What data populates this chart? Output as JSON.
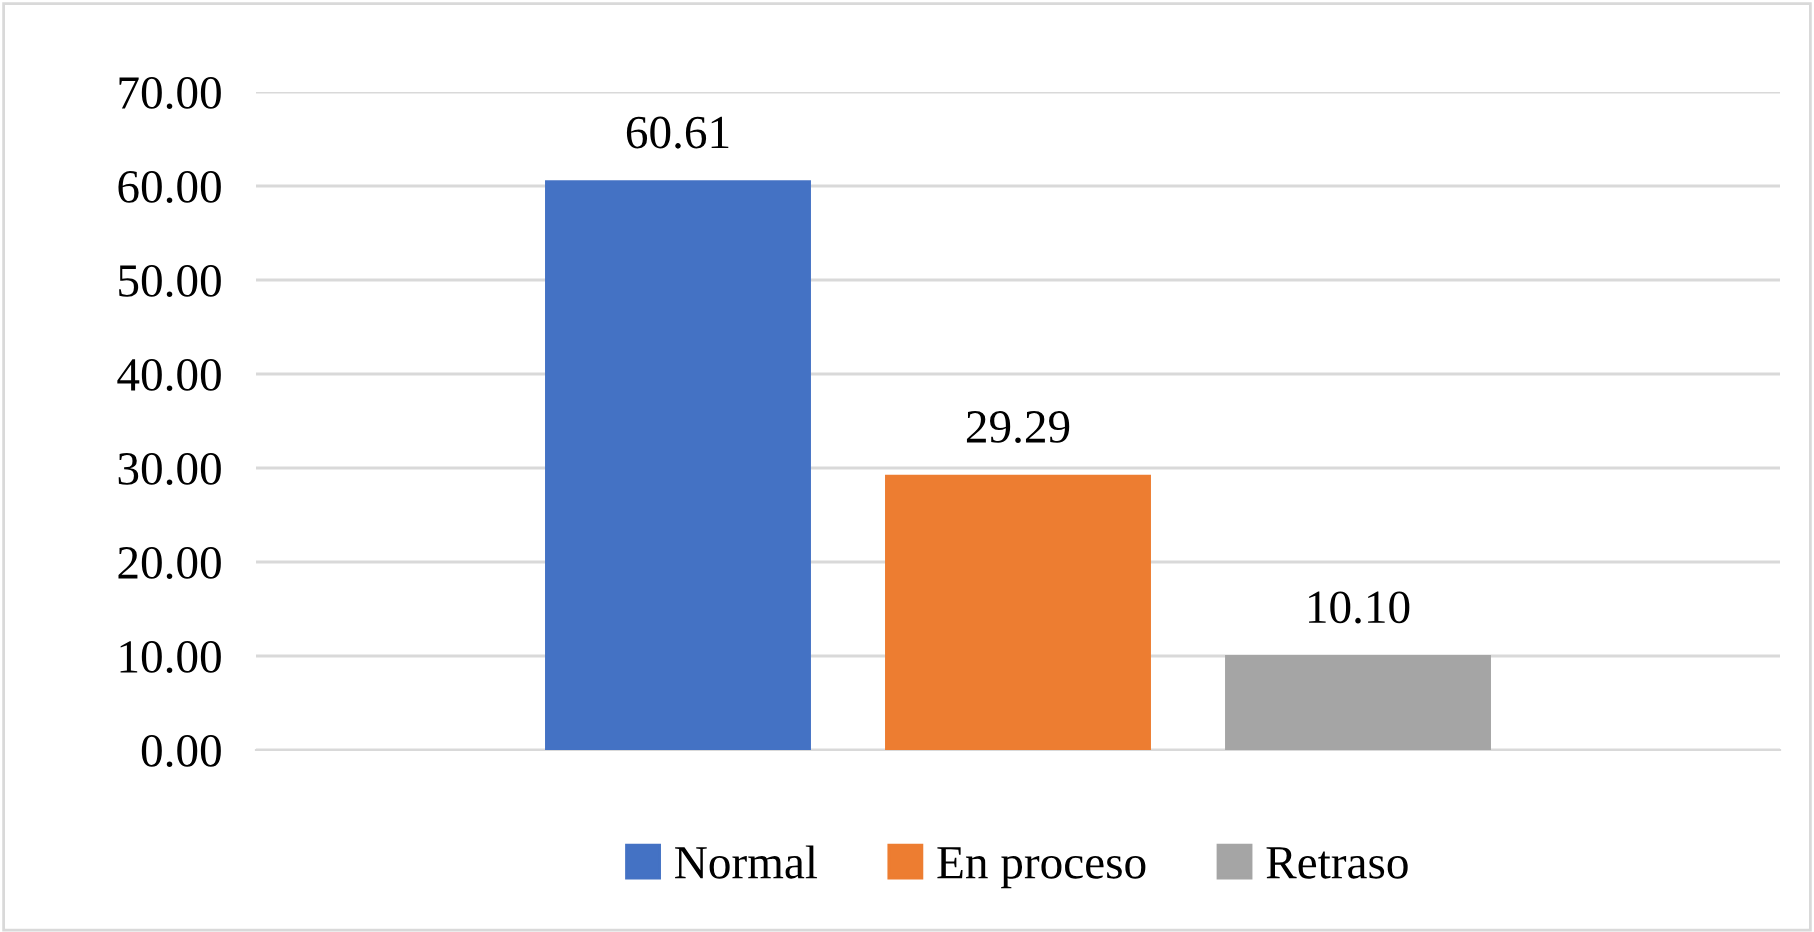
{
  "chart_data": {
    "type": "bar",
    "categories": [
      null
    ],
    "series": [
      {
        "name": "Normal",
        "color": "#4472c4",
        "values": [
          60.61
        ],
        "value_labels": [
          "60.61"
        ]
      },
      {
        "name": "En proceso",
        "color": "#ed7d31",
        "values": [
          29.29
        ],
        "value_labels": [
          "29.29"
        ]
      },
      {
        "name": "Retraso",
        "color": "#a5a5a5",
        "values": [
          10.1
        ],
        "value_labels": [
          "10.10"
        ]
      }
    ],
    "ylim": [
      0,
      70
    ],
    "yticks": [
      {
        "value": 0,
        "label": "0.00"
      },
      {
        "value": 10,
        "label": "10.00"
      },
      {
        "value": 20,
        "label": "20.00"
      },
      {
        "value": 30,
        "label": "30.00"
      },
      {
        "value": 40,
        "label": "40.00"
      },
      {
        "value": 50,
        "label": "50.00"
      },
      {
        "value": 60,
        "label": "60.00"
      },
      {
        "value": 70,
        "label": "70.00"
      }
    ],
    "grid": "y",
    "legend": "bottom",
    "tick_labels": "y"
  }
}
